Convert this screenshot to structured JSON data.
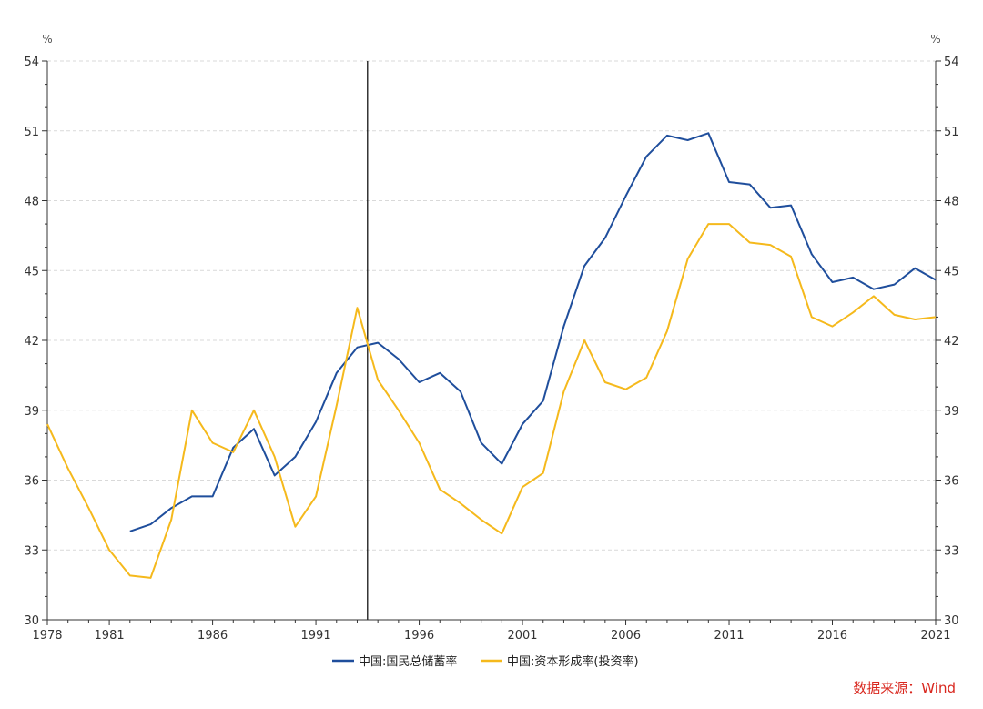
{
  "chart_data": {
    "type": "line",
    "unit_left": "%",
    "unit_right": "%",
    "x_ticks": [
      "1978",
      "1981",
      "1986",
      "1991",
      "1996",
      "2001",
      "2006",
      "2011",
      "2016",
      "2021"
    ],
    "y_ticks": [
      "30",
      "33",
      "36",
      "39",
      "42",
      "45",
      "48",
      "51",
      "54"
    ],
    "xlim": [
      1978,
      2021
    ],
    "ylim": [
      30,
      54
    ],
    "grid": "horizontal-dashed",
    "vertical_marker_year": 1993.5,
    "legend_position": "bottom-center",
    "series": [
      {
        "name": "中国:国民总储蓄率",
        "color": "#1f4e9c",
        "x": [
          1982,
          1983,
          1984,
          1985,
          1986,
          1987,
          1988,
          1989,
          1990,
          1991,
          1992,
          1993,
          1994,
          1995,
          1996,
          1997,
          1998,
          1999,
          2000,
          2001,
          2002,
          2003,
          2004,
          2005,
          2006,
          2007,
          2008,
          2009,
          2010,
          2011,
          2012,
          2013,
          2014,
          2015,
          2016,
          2017,
          2018,
          2019,
          2020,
          2021
        ],
        "y": [
          33.8,
          34.1,
          34.8,
          35.3,
          35.3,
          37.4,
          38.2,
          36.2,
          37.0,
          38.5,
          40.6,
          41.7,
          41.9,
          41.2,
          40.2,
          40.6,
          39.8,
          37.6,
          36.7,
          38.4,
          39.4,
          42.6,
          45.2,
          46.4,
          48.2,
          49.9,
          50.8,
          50.6,
          50.9,
          48.8,
          48.7,
          47.7,
          47.8,
          45.7,
          44.5,
          44.7,
          44.2,
          44.4,
          45.1,
          44.6
        ]
      },
      {
        "name": "中国:资本形成率(投资率)",
        "color": "#f5b91c",
        "x": [
          1978,
          1979,
          1980,
          1981,
          1982,
          1983,
          1984,
          1985,
          1986,
          1987,
          1988,
          1989,
          1990,
          1991,
          1992,
          1993,
          1994,
          1995,
          1996,
          1997,
          1998,
          1999,
          2000,
          2001,
          2002,
          2003,
          2004,
          2005,
          2006,
          2007,
          2008,
          2009,
          2010,
          2011,
          2012,
          2013,
          2014,
          2015,
          2016,
          2017,
          2018,
          2019,
          2020,
          2021
        ],
        "y": [
          38.4,
          36.5,
          34.8,
          33.0,
          31.9,
          31.8,
          34.3,
          39.0,
          37.6,
          37.2,
          39.0,
          37.0,
          34.0,
          35.3,
          39.2,
          43.4,
          40.3,
          39.0,
          37.6,
          35.6,
          35.0,
          34.3,
          33.7,
          35.7,
          36.3,
          39.8,
          42.0,
          40.2,
          39.9,
          40.4,
          42.4,
          45.5,
          47.0,
          47.0,
          46.2,
          46.1,
          45.6,
          43.0,
          42.6,
          43.2,
          43.9,
          43.1,
          42.9,
          43.0
        ]
      }
    ]
  },
  "source": "数据来源：Wind"
}
